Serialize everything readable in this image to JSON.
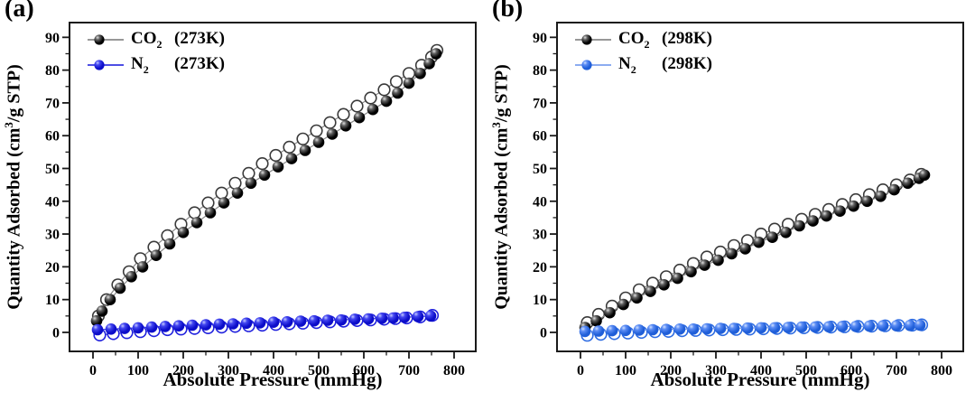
{
  "chart_data": [
    {
      "type": "scatter",
      "panel_tag": "(a)",
      "xlabel": "Absolute Pressure (mmHg)",
      "ylabel_pre": "Quantity Adsorbed (cm",
      "ylabel_sup": "3",
      "ylabel_post": "/g STP)",
      "xlim": [
        -52,
        848
      ],
      "ylim": [
        -5.8,
        94.5
      ],
      "xticks": [
        0,
        100,
        200,
        300,
        400,
        500,
        600,
        700,
        800
      ],
      "yticks": [
        0,
        10,
        20,
        30,
        40,
        50,
        60,
        70,
        80,
        90
      ],
      "x_minor_step": 50,
      "y_minor_step": 5,
      "grid": false,
      "legend_position": "top-left",
      "legend": [
        {
          "formula": "CO",
          "sub": "2",
          "temp": "(273K)",
          "series_index": 1
        },
        {
          "formula": "N",
          "sub": "2",
          "temp": "(273K)",
          "series_index": 3
        }
      ],
      "series": [
        {
          "id": "co2-desorption-273k",
          "name": "CO2 (273K) desorption",
          "marker": "open",
          "color": "#3a3a3a",
          "line_color": "#8a8a8a",
          "x": [
            12,
            30,
            55,
            80,
            105,
            135,
            165,
            195,
            225,
            255,
            285,
            315,
            345,
            375,
            405,
            435,
            465,
            495,
            525,
            555,
            585,
            615,
            645,
            672,
            700,
            728,
            750,
            762
          ],
          "y": [
            5,
            10,
            14.5,
            18.5,
            22.5,
            26,
            29.5,
            33,
            36.5,
            39.5,
            42.5,
            45.5,
            48.5,
            51.5,
            54,
            56.5,
            59,
            61.5,
            64,
            66.5,
            69,
            71.5,
            74,
            76.5,
            79,
            81.5,
            84,
            86
          ]
        },
        {
          "id": "co2-adsorption-273k",
          "name": "CO2 (273K) adsorption",
          "marker": "sphere",
          "highlight": "#e0e0e0",
          "mid": "#606060",
          "color": "#000000",
          "line_color": "#8a8a8a",
          "x": [
            8,
            20,
            38,
            60,
            85,
            110,
            140,
            170,
            200,
            230,
            260,
            290,
            320,
            350,
            380,
            410,
            440,
            470,
            500,
            530,
            560,
            590,
            620,
            650,
            675,
            700,
            725,
            745,
            760
          ],
          "y": [
            3.5,
            6.5,
            10,
            13.5,
            17,
            20,
            23.5,
            27,
            30.5,
            33.5,
            36.5,
            39.5,
            42.5,
            45.5,
            48,
            50.5,
            53,
            55.5,
            58,
            60.5,
            63,
            65.5,
            68,
            70.5,
            73,
            76,
            79,
            82,
            85
          ]
        },
        {
          "id": "n2-desorption-273k",
          "name": "N2 (273K) desorption",
          "marker": "open",
          "color": "#2021dd",
          "line_color": "#3536e0",
          "x": [
            15,
            45,
            75,
            105,
            135,
            165,
            195,
            225,
            255,
            285,
            315,
            345,
            375,
            405,
            435,
            465,
            495,
            525,
            555,
            585,
            615,
            645,
            670,
            695,
            725,
            752
          ],
          "y": [
            -0.8,
            -0.4,
            -0.1,
            0.2,
            0.5,
            0.8,
            1.0,
            1.2,
            1.4,
            1.6,
            1.8,
            2.0,
            2.2,
            2.4,
            2.6,
            2.8,
            3.0,
            3.2,
            3.4,
            3.6,
            3.8,
            4.0,
            4.2,
            4.4,
            4.7,
            5.2
          ]
        },
        {
          "id": "n2-adsorption-273k",
          "name": "N2 (273K) adsorption",
          "marker": "sphere",
          "highlight": "#c3c9ff",
          "mid": "#4346f0",
          "color": "#0c0dc9",
          "line_color": "#3536e0",
          "x": [
            10,
            40,
            70,
            100,
            130,
            160,
            190,
            220,
            250,
            280,
            310,
            340,
            370,
            400,
            430,
            460,
            490,
            520,
            550,
            580,
            610,
            640,
            665,
            690,
            720,
            748
          ],
          "y": [
            0.8,
            1.0,
            1.2,
            1.4,
            1.6,
            1.8,
            2.0,
            2.2,
            2.3,
            2.5,
            2.6,
            2.8,
            2.9,
            3.1,
            3.2,
            3.4,
            3.5,
            3.7,
            3.8,
            4.0,
            4.1,
            4.3,
            4.4,
            4.6,
            4.8,
            5.0
          ]
        }
      ]
    },
    {
      "type": "scatter",
      "panel_tag": "(b)",
      "xlabel": "Absolute Pressure (mmHg)",
      "ylabel_pre": "Quantity Adsorbed (cm",
      "ylabel_sup": "3",
      "ylabel_post": "/g STP)",
      "xlim": [
        -52,
        848
      ],
      "ylim": [
        -5.8,
        94.5
      ],
      "xticks": [
        0,
        100,
        200,
        300,
        400,
        500,
        600,
        700,
        800
      ],
      "yticks": [
        0,
        10,
        20,
        30,
        40,
        50,
        60,
        70,
        80,
        90
      ],
      "x_minor_step": 50,
      "y_minor_step": 5,
      "grid": false,
      "legend_position": "top-left",
      "legend": [
        {
          "formula": "CO",
          "sub": "2",
          "temp": "(298K)",
          "series_index": 1
        },
        {
          "formula": "N",
          "sub": "2",
          "temp": "(298K)",
          "series_index": 3
        }
      ],
      "series": [
        {
          "id": "co2-desorption-298k",
          "name": "CO2 (298K) desorption",
          "marker": "open",
          "color": "#3a3a3a",
          "line_color": "#8a8a8a",
          "x": [
            15,
            40,
            70,
            100,
            130,
            160,
            190,
            220,
            250,
            280,
            310,
            340,
            370,
            400,
            430,
            460,
            490,
            520,
            550,
            580,
            610,
            640,
            670,
            700,
            730,
            755
          ],
          "y": [
            3,
            5.5,
            8,
            10.5,
            13,
            15,
            17,
            19,
            21,
            23,
            24.5,
            26.5,
            28,
            30,
            31.5,
            33,
            34.5,
            36,
            37.5,
            39,
            40.5,
            42,
            43.5,
            45,
            46.5,
            48.2
          ]
        },
        {
          "id": "co2-adsorption-298k",
          "name": "CO2 (298K) adsorption",
          "marker": "sphere",
          "highlight": "#e0e0e0",
          "mid": "#606060",
          "color": "#000000",
          "line_color": "#8a8a8a",
          "x": [
            10,
            35,
            65,
            95,
            125,
            155,
            185,
            215,
            245,
            275,
            305,
            335,
            365,
            395,
            425,
            455,
            485,
            515,
            545,
            575,
            605,
            635,
            665,
            695,
            725,
            750,
            762
          ],
          "y": [
            1.5,
            3.5,
            6,
            8.5,
            10.5,
            12.5,
            14.5,
            16.5,
            18.5,
            20.5,
            22,
            24,
            25.5,
            27.5,
            29,
            30.5,
            32.5,
            34,
            35.5,
            37,
            38.5,
            40,
            41.5,
            43.5,
            45.5,
            47,
            48
          ]
        },
        {
          "id": "n2-desorption-298k",
          "name": "N2 (298K) desorption",
          "marker": "open",
          "color": "#2e6ce2",
          "line_color": "#7ba1ee",
          "x": [
            15,
            45,
            75,
            105,
            135,
            165,
            195,
            225,
            255,
            285,
            315,
            345,
            375,
            405,
            435,
            465,
            495,
            525,
            555,
            585,
            615,
            645,
            675,
            705,
            735,
            756
          ],
          "y": [
            -0.9,
            -0.6,
            -0.4,
            -0.2,
            0,
            0.2,
            0.3,
            0.5,
            0.6,
            0.7,
            0.8,
            0.9,
            1.0,
            1.1,
            1.2,
            1.3,
            1.4,
            1.5,
            1.6,
            1.7,
            1.8,
            1.9,
            2.0,
            2.1,
            2.2,
            2.3
          ]
        },
        {
          "id": "n2-adsorption-298k",
          "name": "N2 (298K) adsorption",
          "marker": "sphere",
          "highlight": "#cfe0ff",
          "mid": "#5b8cf4",
          "color": "#1f5ed8",
          "line_color": "#7ba1ee",
          "x": [
            10,
            40,
            70,
            100,
            130,
            160,
            190,
            220,
            250,
            280,
            310,
            340,
            370,
            400,
            430,
            460,
            490,
            520,
            550,
            580,
            610,
            640,
            670,
            700,
            730,
            752
          ],
          "y": [
            0.3,
            0.4,
            0.5,
            0.6,
            0.7,
            0.8,
            0.9,
            1.0,
            1.0,
            1.1,
            1.2,
            1.2,
            1.3,
            1.4,
            1.4,
            1.5,
            1.6,
            1.6,
            1.7,
            1.8,
            1.8,
            1.9,
            2.0,
            2.0,
            2.1,
            2.2
          ]
        }
      ]
    }
  ]
}
